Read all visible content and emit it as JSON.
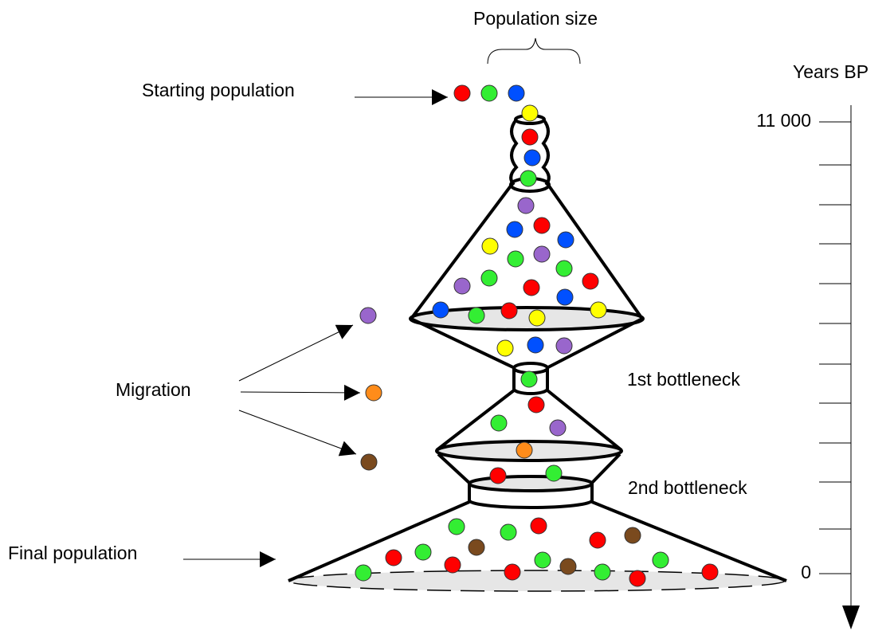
{
  "header": {
    "title": "Population size"
  },
  "labels": {
    "start": "Starting population",
    "migration": "Migration",
    "bottleneck1": "1st bottleneck",
    "bottleneck2": "2nd bottleneck",
    "final": "Final population"
  },
  "axis": {
    "title": "Years BP",
    "top_label": "11 000",
    "bottom_label": "0"
  }
}
